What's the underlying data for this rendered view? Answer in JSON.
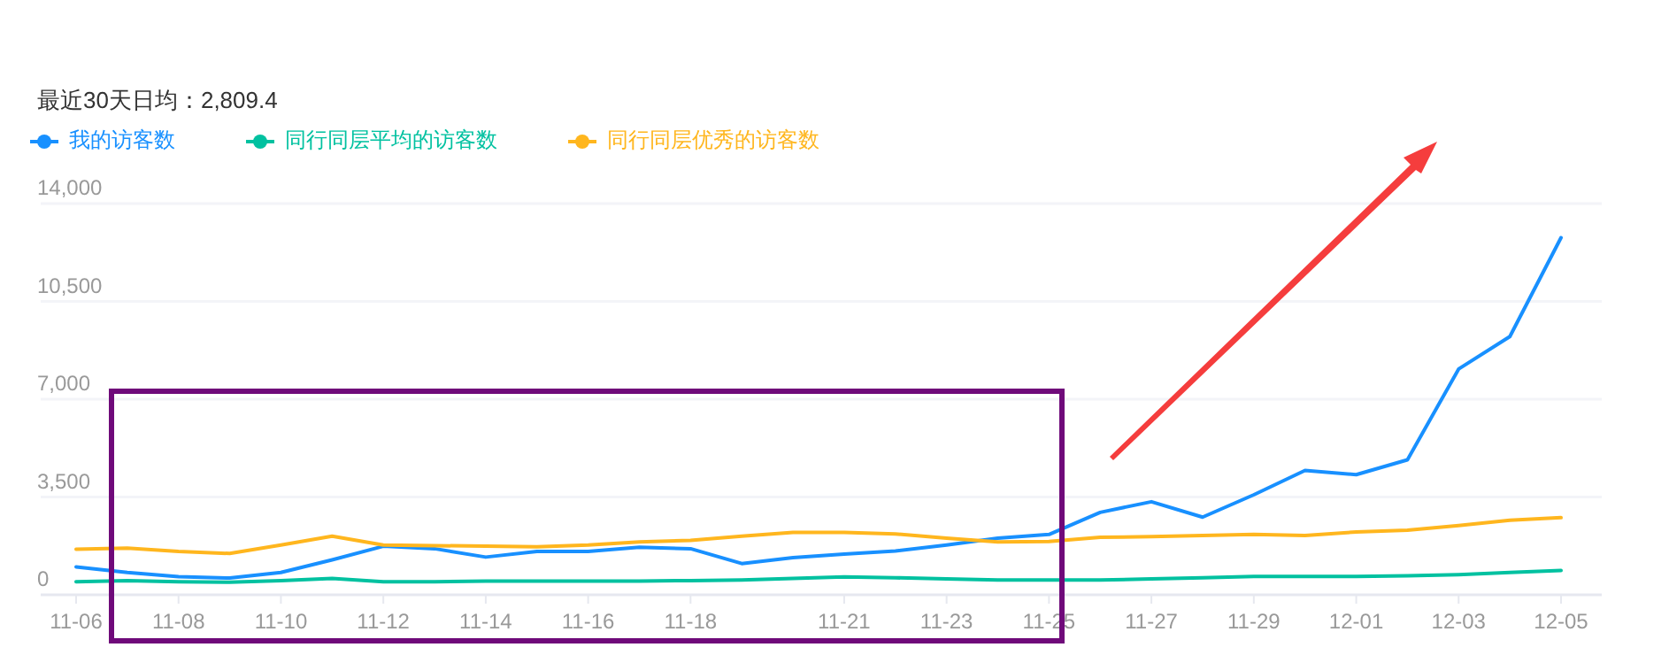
{
  "chart_data": {
    "type": "line",
    "title": "最近30天日均：2,809.4",
    "categories": [
      "11-06",
      null,
      "11-08",
      null,
      "11-10",
      null,
      "11-12",
      null,
      "11-14",
      null,
      "11-16",
      null,
      "11-18",
      null,
      null,
      "11-21",
      null,
      "11-23",
      null,
      "11-25",
      null,
      "11-27",
      null,
      "11-29",
      null,
      "12-01",
      null,
      "12-03",
      null,
      "12-05"
    ],
    "series": [
      {
        "name": "我的访客数",
        "color": "#1890ff",
        "values": [
          1000,
          800,
          650,
          600,
          800,
          1250,
          1740,
          1650,
          1350,
          1550,
          1550,
          1700,
          1650,
          1120,
          1330,
          1460,
          1570,
          1780,
          2030,
          2160,
          2950,
          3330,
          2780,
          3580,
          4450,
          4300,
          4830,
          8080,
          9240,
          12780
        ]
      },
      {
        "name": "同行同层平均的访客数",
        "color": "#00c1a0",
        "values": [
          470,
          510,
          470,
          450,
          510,
          590,
          470,
          470,
          490,
          490,
          490,
          490,
          510,
          530,
          590,
          640,
          610,
          570,
          530,
          530,
          530,
          570,
          610,
          660,
          660,
          660,
          680,
          720,
          800,
          870
        ]
      },
      {
        "name": "同行同层优秀的访客数",
        "color": "#ffb61e",
        "values": [
          1630,
          1670,
          1550,
          1480,
          1780,
          2100,
          1780,
          1760,
          1740,
          1720,
          1780,
          1890,
          1950,
          2100,
          2230,
          2230,
          2180,
          2030,
          1890,
          1910,
          2060,
          2080,
          2120,
          2160,
          2120,
          2250,
          2310,
          2480,
          2670,
          2760
        ]
      }
    ],
    "ylim": [
      0,
      14000
    ],
    "yticks": [
      0,
      {
        "value": 3500,
        "label": "3,500"
      },
      {
        "value": 7000,
        "label": "7,000"
      },
      {
        "value": 10500,
        "label": "10,500"
      },
      {
        "value": 14000,
        "label": "14,000"
      }
    ],
    "grid": "y",
    "legend": "top left",
    "line_style": "solid"
  }
}
